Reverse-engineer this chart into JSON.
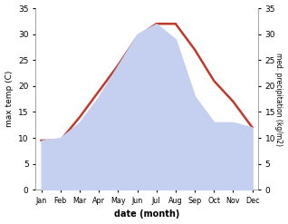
{
  "months": [
    "Jan",
    "Feb",
    "Mar",
    "Apr",
    "May",
    "Jun",
    "Jul",
    "Aug",
    "Sep",
    "Oct",
    "Nov",
    "Dec"
  ],
  "max_temp": [
    9.5,
    9.5,
    14,
    19,
    24,
    29.5,
    32,
    32,
    27,
    21,
    17,
    12
  ],
  "precipitation": [
    9.5,
    10,
    13,
    18,
    24,
    30,
    32,
    29,
    18,
    13,
    13,
    12
  ],
  "temp_color": "#c0392b",
  "precip_fill_color": "#c5d0f0",
  "ylim_left": [
    0,
    35
  ],
  "ylim_right": [
    0,
    35
  ],
  "xlabel": "date (month)",
  "ylabel_left": "max temp (C)",
  "ylabel_right": "med. precipitation (kg/m2)",
  "bg_color": "#ffffff",
  "temp_linewidth": 1.8
}
